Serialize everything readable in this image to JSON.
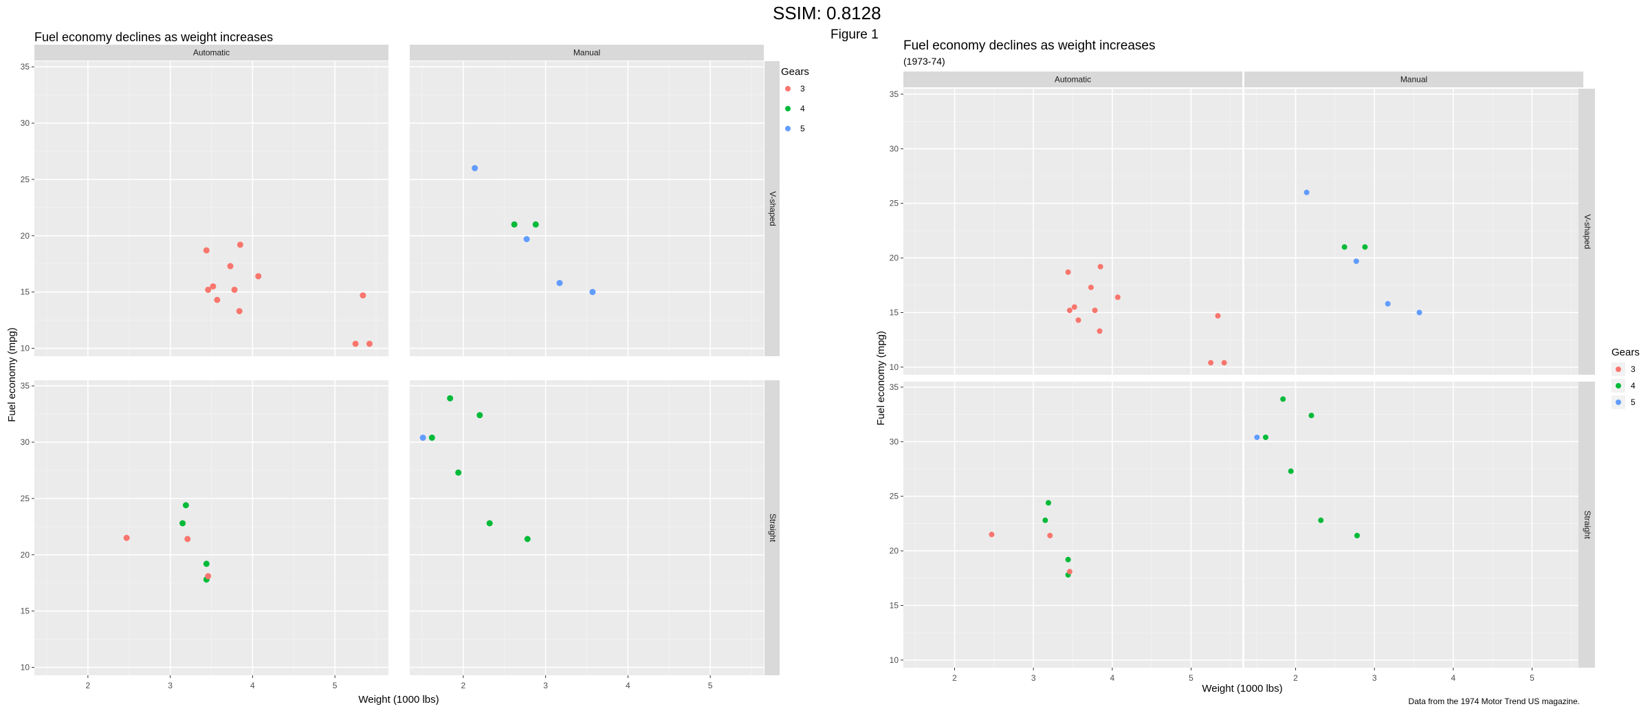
{
  "header": {
    "ssim_text": "SSIM: 0.8128",
    "figure_label": "Figure 1"
  },
  "colors": {
    "panel_bg": "#EBEBEB",
    "strip_bg": "#D9D9D9",
    "grid_major": "#FFFFFF",
    "gear3": "#F8766D",
    "gear4": "#00BA38",
    "gear5": "#619CFF"
  },
  "legend_left": {
    "title": "Gears",
    "labels": [
      "3",
      "4",
      "5"
    ]
  },
  "legend_right": {
    "title": "Gears",
    "labels": [
      "3",
      "4",
      "5"
    ]
  },
  "chart_data": [
    {
      "type": "scatter",
      "id": "left",
      "title": "Fuel economy declines as weight increases",
      "subtitle": "",
      "caption": "",
      "xlabel": "Weight (1000 lbs)",
      "ylabel": "Fuel economy (mpg)",
      "xlim": [
        1.35,
        5.65
      ],
      "ylim": [
        9.3,
        35.5
      ],
      "xticks": [
        2,
        3,
        4,
        5
      ],
      "yticks": [
        10,
        15,
        20,
        25,
        30,
        35
      ],
      "col_facets": [
        "Automatic",
        "Manual"
      ],
      "row_facets": [
        "V-shaped",
        "Straight"
      ],
      "legend": {
        "title": "Gears",
        "position": "top-right"
      },
      "panels": [
        {
          "col": "Automatic",
          "row": "V-shaped",
          "points": [
            {
              "x": 3.44,
              "y": 18.7,
              "gear": 3
            },
            {
              "x": 3.46,
              "y": 15.2,
              "gear": 3
            },
            {
              "x": 3.52,
              "y": 15.5,
              "gear": 3
            },
            {
              "x": 3.57,
              "y": 14.3,
              "gear": 3
            },
            {
              "x": 3.73,
              "y": 17.3,
              "gear": 3
            },
            {
              "x": 3.78,
              "y": 15.2,
              "gear": 3
            },
            {
              "x": 3.84,
              "y": 13.3,
              "gear": 3
            },
            {
              "x": 3.85,
              "y": 19.2,
              "gear": 3
            },
            {
              "x": 4.07,
              "y": 16.4,
              "gear": 3
            },
            {
              "x": 5.25,
              "y": 10.4,
              "gear": 3
            },
            {
              "x": 5.34,
              "y": 14.7,
              "gear": 3
            },
            {
              "x": 5.42,
              "y": 10.4,
              "gear": 3
            }
          ]
        },
        {
          "col": "Manual",
          "row": "V-shaped",
          "points": [
            {
              "x": 2.14,
              "y": 26.0,
              "gear": 5
            },
            {
              "x": 2.62,
              "y": 21.0,
              "gear": 4
            },
            {
              "x": 2.77,
              "y": 19.7,
              "gear": 5
            },
            {
              "x": 2.88,
              "y": 21.0,
              "gear": 4
            },
            {
              "x": 3.17,
              "y": 15.8,
              "gear": 5
            },
            {
              "x": 3.57,
              "y": 15.0,
              "gear": 5
            }
          ]
        },
        {
          "col": "Automatic",
          "row": "Straight",
          "points": [
            {
              "x": 2.47,
              "y": 21.5,
              "gear": 3
            },
            {
              "x": 3.15,
              "y": 22.8,
              "gear": 4
            },
            {
              "x": 3.19,
              "y": 24.4,
              "gear": 4
            },
            {
              "x": 3.21,
              "y": 21.4,
              "gear": 3
            },
            {
              "x": 3.44,
              "y": 19.2,
              "gear": 4
            },
            {
              "x": 3.44,
              "y": 17.8,
              "gear": 4
            },
            {
              "x": 3.46,
              "y": 18.1,
              "gear": 3
            }
          ]
        },
        {
          "col": "Manual",
          "row": "Straight",
          "points": [
            {
              "x": 1.51,
              "y": 30.4,
              "gear": 5
            },
            {
              "x": 1.62,
              "y": 30.4,
              "gear": 4
            },
            {
              "x": 1.84,
              "y": 33.9,
              "gear": 4
            },
            {
              "x": 1.94,
              "y": 27.3,
              "gear": 4
            },
            {
              "x": 2.2,
              "y": 32.4,
              "gear": 4
            },
            {
              "x": 2.32,
              "y": 22.8,
              "gear": 4
            },
            {
              "x": 2.78,
              "y": 21.4,
              "gear": 4
            }
          ]
        }
      ]
    },
    {
      "type": "scatter",
      "id": "right",
      "title": "Fuel economy declines as weight increases",
      "subtitle": "(1973-74)",
      "caption": "Data from the 1974 Motor Trend US magazine.",
      "xlabel": "Weight (1000 lbs)",
      "ylabel": "Fuel economy (mpg)",
      "xlim": [
        1.35,
        5.65
      ],
      "ylim": [
        9.3,
        35.5
      ],
      "xticks": [
        2,
        3,
        4,
        5
      ],
      "yticks": [
        10,
        15,
        20,
        25,
        30,
        35
      ],
      "col_facets": [
        "Automatic",
        "Manual"
      ],
      "row_facets": [
        "V-shaped",
        "Straight"
      ],
      "legend": {
        "title": "Gears",
        "position": "right"
      },
      "panels": [
        {
          "col": "Automatic",
          "row": "V-shaped",
          "points": [
            {
              "x": 3.44,
              "y": 18.7,
              "gear": 3
            },
            {
              "x": 3.46,
              "y": 15.2,
              "gear": 3
            },
            {
              "x": 3.52,
              "y": 15.5,
              "gear": 3
            },
            {
              "x": 3.57,
              "y": 14.3,
              "gear": 3
            },
            {
              "x": 3.73,
              "y": 17.3,
              "gear": 3
            },
            {
              "x": 3.78,
              "y": 15.2,
              "gear": 3
            },
            {
              "x": 3.84,
              "y": 13.3,
              "gear": 3
            },
            {
              "x": 3.85,
              "y": 19.2,
              "gear": 3
            },
            {
              "x": 4.07,
              "y": 16.4,
              "gear": 3
            },
            {
              "x": 5.25,
              "y": 10.4,
              "gear": 3
            },
            {
              "x": 5.34,
              "y": 14.7,
              "gear": 3
            },
            {
              "x": 5.42,
              "y": 10.4,
              "gear": 3
            }
          ]
        },
        {
          "col": "Manual",
          "row": "V-shaped",
          "points": [
            {
              "x": 2.14,
              "y": 26.0,
              "gear": 5
            },
            {
              "x": 2.62,
              "y": 21.0,
              "gear": 4
            },
            {
              "x": 2.77,
              "y": 19.7,
              "gear": 5
            },
            {
              "x": 2.88,
              "y": 21.0,
              "gear": 4
            },
            {
              "x": 3.17,
              "y": 15.8,
              "gear": 5
            },
            {
              "x": 3.57,
              "y": 15.0,
              "gear": 5
            }
          ]
        },
        {
          "col": "Automatic",
          "row": "Straight",
          "points": [
            {
              "x": 2.47,
              "y": 21.5,
              "gear": 3
            },
            {
              "x": 3.15,
              "y": 22.8,
              "gear": 4
            },
            {
              "x": 3.19,
              "y": 24.4,
              "gear": 4
            },
            {
              "x": 3.21,
              "y": 21.4,
              "gear": 3
            },
            {
              "x": 3.44,
              "y": 19.2,
              "gear": 4
            },
            {
              "x": 3.44,
              "y": 17.8,
              "gear": 4
            },
            {
              "x": 3.46,
              "y": 18.1,
              "gear": 3
            }
          ]
        },
        {
          "col": "Manual",
          "row": "Straight",
          "points": [
            {
              "x": 1.51,
              "y": 30.4,
              "gear": 5
            },
            {
              "x": 1.62,
              "y": 30.4,
              "gear": 4
            },
            {
              "x": 1.84,
              "y": 33.9,
              "gear": 4
            },
            {
              "x": 1.94,
              "y": 27.3,
              "gear": 4
            },
            {
              "x": 2.2,
              "y": 32.4,
              "gear": 4
            },
            {
              "x": 2.32,
              "y": 22.8,
              "gear": 4
            },
            {
              "x": 2.78,
              "y": 21.4,
              "gear": 4
            }
          ]
        }
      ]
    }
  ]
}
